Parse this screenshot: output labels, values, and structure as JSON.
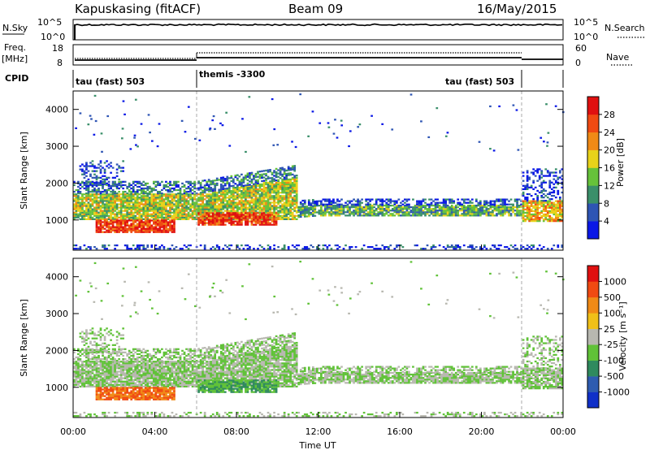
{
  "header": {
    "station": "Kapuskasing (fitACF)",
    "beam": "Beam 09",
    "date": "16/May/2015"
  },
  "top_panels": {
    "nsky_label": "N.Sky",
    "nsky_ticks": [
      "10^5",
      "10^0"
    ],
    "nsearch_label": "N.Search",
    "nsearch_ticks": [
      "10^5",
      "10^0"
    ],
    "freq_label": "Freq.",
    "freq_unit": "[MHz]",
    "freq_ticks": [
      "18",
      "8"
    ],
    "nave_label": "Nave",
    "nave_ticks": [
      "60",
      "0"
    ],
    "cpid_label": "CPID",
    "cpid_segments": [
      {
        "label": "tau (fast) 503",
        "start_h": 0,
        "end_h": 6
      },
      {
        "label": "themis -3300",
        "start_h": 6,
        "end_h": 22
      },
      {
        "label": "tau (fast) 503",
        "start_h": 22,
        "end_h": 24
      }
    ]
  },
  "chart_data": [
    {
      "type": "heatmap",
      "name": "power",
      "ylabel": "Slant Range [km]",
      "xlim": [
        0,
        24
      ],
      "ylim": [
        180,
        4500
      ],
      "y_ticks": [
        "1000",
        "2000",
        "3000",
        "4000"
      ],
      "colorbar": {
        "label": "Power [dB]",
        "ticks": [
          "4",
          "8",
          "12",
          "16",
          "20",
          "24",
          "28"
        ],
        "colors": [
          "#0a18e6",
          "#2e55b4",
          "#3a8f6a",
          "#66c23a",
          "#e8d21a",
          "#f08a16",
          "#f04a12",
          "#e01010"
        ]
      }
    },
    {
      "type": "heatmap",
      "name": "velocity",
      "ylabel": "Slant Range [km]",
      "xlabel": "Time UT",
      "xlim": [
        0,
        24
      ],
      "ylim": [
        180,
        4500
      ],
      "y_ticks": [
        "1000",
        "2000",
        "3000",
        "4000"
      ],
      "x_ticks": [
        "00:00",
        "04:00",
        "08:00",
        "12:00",
        "16:00",
        "20:00",
        "00:00"
      ],
      "colorbar": {
        "label": "Velocity [m s⁻¹]",
        "ticks": [
          "1000",
          "500",
          "100",
          "25",
          "-25",
          "-100",
          "-500",
          "-1000"
        ],
        "colors": [
          "#1030c8",
          "#2e5cb0",
          "#2f8a5e",
          "#60c238",
          "#b8b8b0",
          "#f0c018",
          "#f08a16",
          "#f04a12",
          "#e01010"
        ]
      }
    }
  ]
}
